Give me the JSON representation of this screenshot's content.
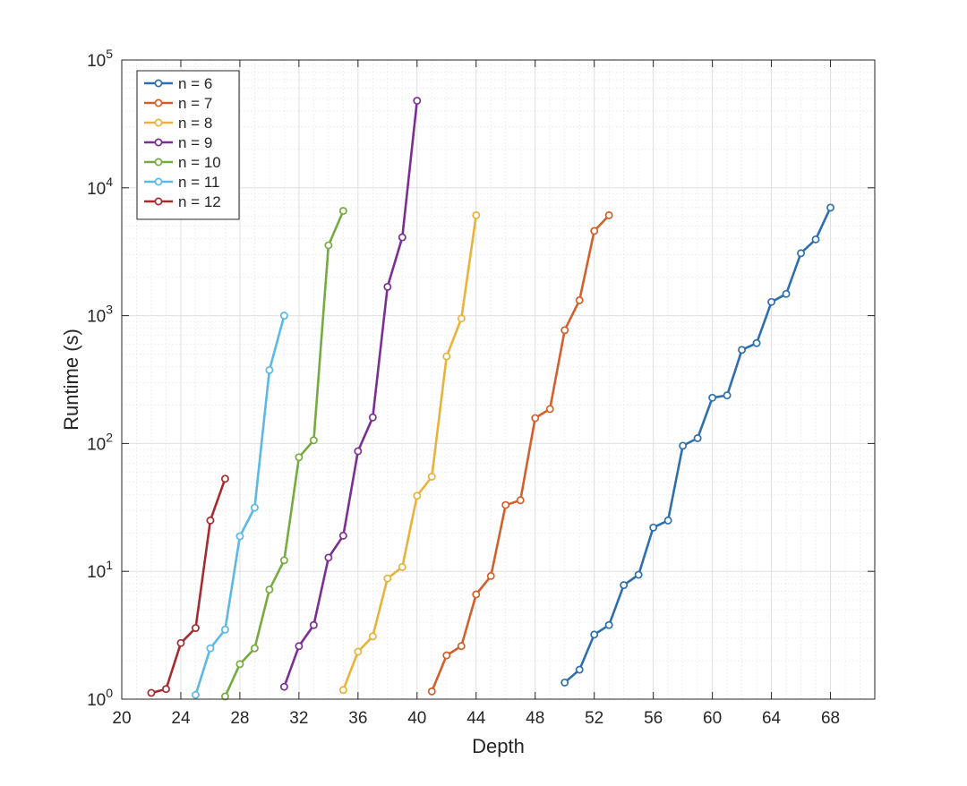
{
  "chart_data": {
    "type": "line",
    "title": "",
    "xlabel": "Depth",
    "ylabel": "Runtime (s)",
    "xlim": [
      20,
      71
    ],
    "ylim": [
      1,
      100000
    ],
    "yscale": "log",
    "grid": true,
    "minor_grid": true,
    "legend_position": "top-left",
    "x_ticks": [
      20,
      24,
      28,
      32,
      36,
      40,
      44,
      48,
      52,
      56,
      60,
      64,
      68
    ],
    "y_ticks": [
      {
        "value": 1,
        "base": "10",
        "exp": "0"
      },
      {
        "value": 10,
        "base": "10",
        "exp": "1"
      },
      {
        "value": 100,
        "base": "10",
        "exp": "2"
      },
      {
        "value": 1000,
        "base": "10",
        "exp": "3"
      },
      {
        "value": 10000,
        "base": "10",
        "exp": "4"
      },
      {
        "value": 100000,
        "base": "10",
        "exp": "5"
      }
    ],
    "series": [
      {
        "name": "n = 6",
        "color": "#2f6fad",
        "x": [
          50,
          51,
          52,
          53,
          54,
          55,
          56,
          57,
          58,
          59,
          60,
          61,
          62,
          63,
          64,
          65,
          66,
          67,
          68
        ],
        "y": [
          1.35,
          1.7,
          3.2,
          3.8,
          7.8,
          9.4,
          22,
          25,
          96,
          110,
          228,
          238,
          540,
          610,
          1280,
          1480,
          3080,
          3950,
          7000
        ]
      },
      {
        "name": "n = 7",
        "color": "#d35f2a",
        "x": [
          41,
          42,
          43,
          44,
          45,
          46,
          47,
          48,
          49,
          50,
          51,
          52,
          53
        ],
        "y": [
          1.15,
          2.2,
          2.6,
          6.6,
          9.2,
          33,
          36,
          158,
          186,
          770,
          1320,
          4600,
          6100
        ]
      },
      {
        "name": "n = 8",
        "color": "#e8b33a",
        "x": [
          35,
          36,
          37,
          38,
          39,
          40,
          41,
          42,
          43,
          44
        ],
        "y": [
          1.18,
          2.35,
          3.1,
          8.8,
          10.8,
          39,
          55,
          480,
          950,
          6100
        ]
      },
      {
        "name": "n = 9",
        "color": "#7b2f92",
        "x": [
          31,
          32,
          33,
          34,
          35,
          36,
          37,
          38,
          39,
          40
        ],
        "y": [
          1.25,
          2.6,
          3.8,
          12.8,
          19,
          87,
          160,
          1680,
          4100,
          48000
        ]
      },
      {
        "name": "n = 10",
        "color": "#76ab3f",
        "x": [
          27,
          28,
          29,
          30,
          31,
          32,
          33,
          34,
          35
        ],
        "y": [
          1.05,
          1.88,
          2.5,
          7.2,
          12.2,
          78,
          106,
          3550,
          6600
        ]
      },
      {
        "name": "n = 11",
        "color": "#5cb8e4",
        "x": [
          25,
          26,
          27,
          28,
          29,
          30,
          31
        ],
        "y": [
          1.08,
          2.5,
          3.5,
          18.8,
          31.5,
          375,
          1000
        ]
      },
      {
        "name": "n = 12",
        "color": "#a62b30",
        "x": [
          22,
          23,
          24,
          25,
          26,
          27
        ],
        "y": [
          1.12,
          1.2,
          2.75,
          3.6,
          25,
          53
        ]
      }
    ]
  }
}
